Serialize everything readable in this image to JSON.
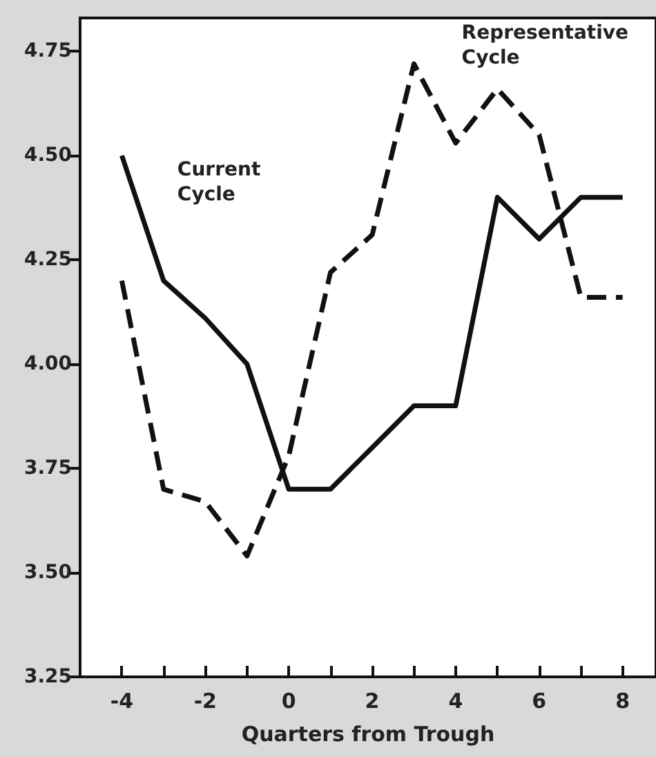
{
  "chart_data": {
    "type": "line",
    "xlabel": "Quarters from Trough",
    "x": [
      -4,
      -3,
      -2,
      -1,
      0,
      1,
      2,
      3,
      4,
      5,
      6,
      7,
      8
    ],
    "series": [
      {
        "name": "Current Cycle",
        "color": "#111111",
        "line_style": "solid",
        "values": [
          4.5,
          4.2,
          4.11,
          4.0,
          3.7,
          3.7,
          3.8,
          3.9,
          3.9,
          4.4,
          4.3,
          4.4,
          4.4
        ]
      },
      {
        "name": "Representative Cycle",
        "color": "#111111",
        "line_style": "dashed",
        "values": [
          4.2,
          3.7,
          3.67,
          3.54,
          3.78,
          4.22,
          4.31,
          4.72,
          4.53,
          4.66,
          4.55,
          4.16,
          4.16
        ]
      }
    ],
    "xlim": [
      -5,
      8.8
    ],
    "ylim": [
      3.25,
      4.83
    ],
    "xticks": [
      -4,
      {
        "value": -3,
        "label": null
      },
      -2,
      {
        "value": -1,
        "label": null
      },
      0,
      {
        "value": 1,
        "label": null
      },
      2,
      {
        "value": 3,
        "label": null
      },
      4,
      {
        "value": 5,
        "label": null
      },
      6,
      {
        "value": 7,
        "label": null
      },
      8
    ],
    "yticks": [
      3.25,
      {
        "value": 3.5,
        "label": "3.50"
      },
      3.75,
      {
        "value": 4,
        "label": "4.00"
      },
      4.25,
      {
        "value": 4.5,
        "label": "4.50"
      },
      4.75
    ],
    "grid": false,
    "legend": false,
    "marker": "none"
  }
}
